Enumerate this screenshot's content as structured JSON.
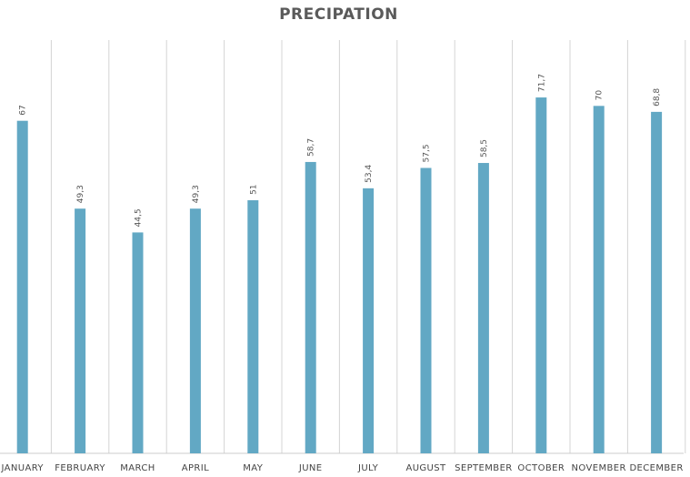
{
  "chart_data": {
    "type": "bar",
    "title": "PRECIPATION",
    "categories": [
      "JANUARY",
      "FEBRUARY",
      "MARCH",
      "APRIL",
      "MAY",
      "JUNE",
      "JULY",
      "AUGUST",
      "SEPTEMBER",
      "OCTOBER",
      "NOVEMBER",
      "DECEMBER"
    ],
    "values": [
      67,
      49.3,
      44.5,
      49.3,
      51,
      58.7,
      53.4,
      57.5,
      58.5,
      71.7,
      70,
      68.8
    ],
    "data_labels": [
      "67",
      "49,3",
      "44,5",
      "49,3",
      "51",
      "58,7",
      "53,4",
      "57,5",
      "58,5",
      "71,7",
      "70",
      "68,8"
    ],
    "xlabel": "",
    "ylabel": "",
    "ylim": [
      0,
      84
    ],
    "grid": "vertical",
    "legend": "none",
    "colors": {
      "bar": "#62a8c4",
      "grid": "#d4d4d4",
      "axis": "#cccccc"
    }
  }
}
